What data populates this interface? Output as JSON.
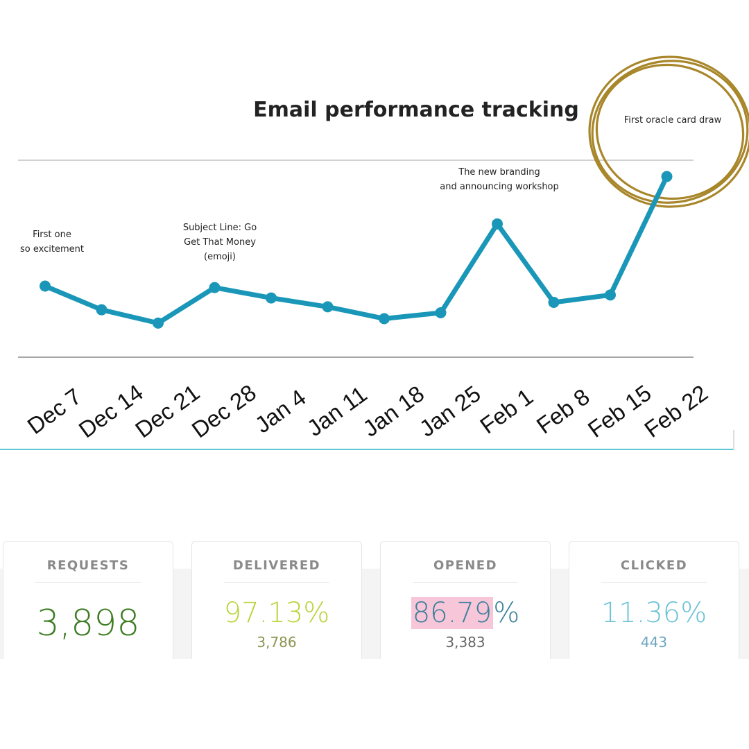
{
  "chart_data": {
    "type": "line",
    "title": "Email performance tracking",
    "categories": [
      "Dec 7",
      "Dec 14",
      "Dec 21",
      "Dec 28",
      "Jan 4",
      "Jan 11",
      "Jan 18",
      "Jan 25",
      "Feb 1",
      "Feb 8",
      "Feb 15",
      "Feb 22"
    ],
    "series": [
      {
        "values": [
          38,
          22,
          13,
          37,
          30,
          24,
          16,
          20,
          80,
          27,
          32,
          112
        ]
      }
    ],
    "ylim": [
      -10,
      123
    ],
    "grid": true,
    "line_color": "#1a97b8",
    "annotations": [
      {
        "index": 0,
        "lines": [
          "First one",
          "so excitement"
        ]
      },
      {
        "index": 3,
        "lines": [
          "Subject Line: Go",
          "Get That Money",
          "(emoji)"
        ]
      },
      {
        "index": 8,
        "lines": [
          "The new branding",
          "and announcing workshop"
        ]
      },
      {
        "index": 11,
        "lines": [
          "First oracle card draw"
        ]
      }
    ]
  },
  "stats": [
    {
      "label": "REQUESTS",
      "value": "3,898",
      "value_color": "#3e7d24"
    },
    {
      "label": "DELIVERED",
      "value": "97.13%",
      "sub": "3,786",
      "value_color": "#b8d43a",
      "sub_color": "#8c9450"
    },
    {
      "label": "OPENED",
      "value_main": "86.79",
      "value_suffix": "%",
      "sub": "3,383",
      "value_color": "#3a7f9a",
      "sub_color": "#666666",
      "highlight_color": "#f7c6d9"
    },
    {
      "label": "CLICKED",
      "value": "11.36%",
      "sub": "443",
      "value_color": "#6cc1d6",
      "sub_color": "#6ca5bf"
    }
  ],
  "accent_colors": {
    "circle_gold": "#a8862a",
    "frame_cyan": "#5ec8d2"
  }
}
